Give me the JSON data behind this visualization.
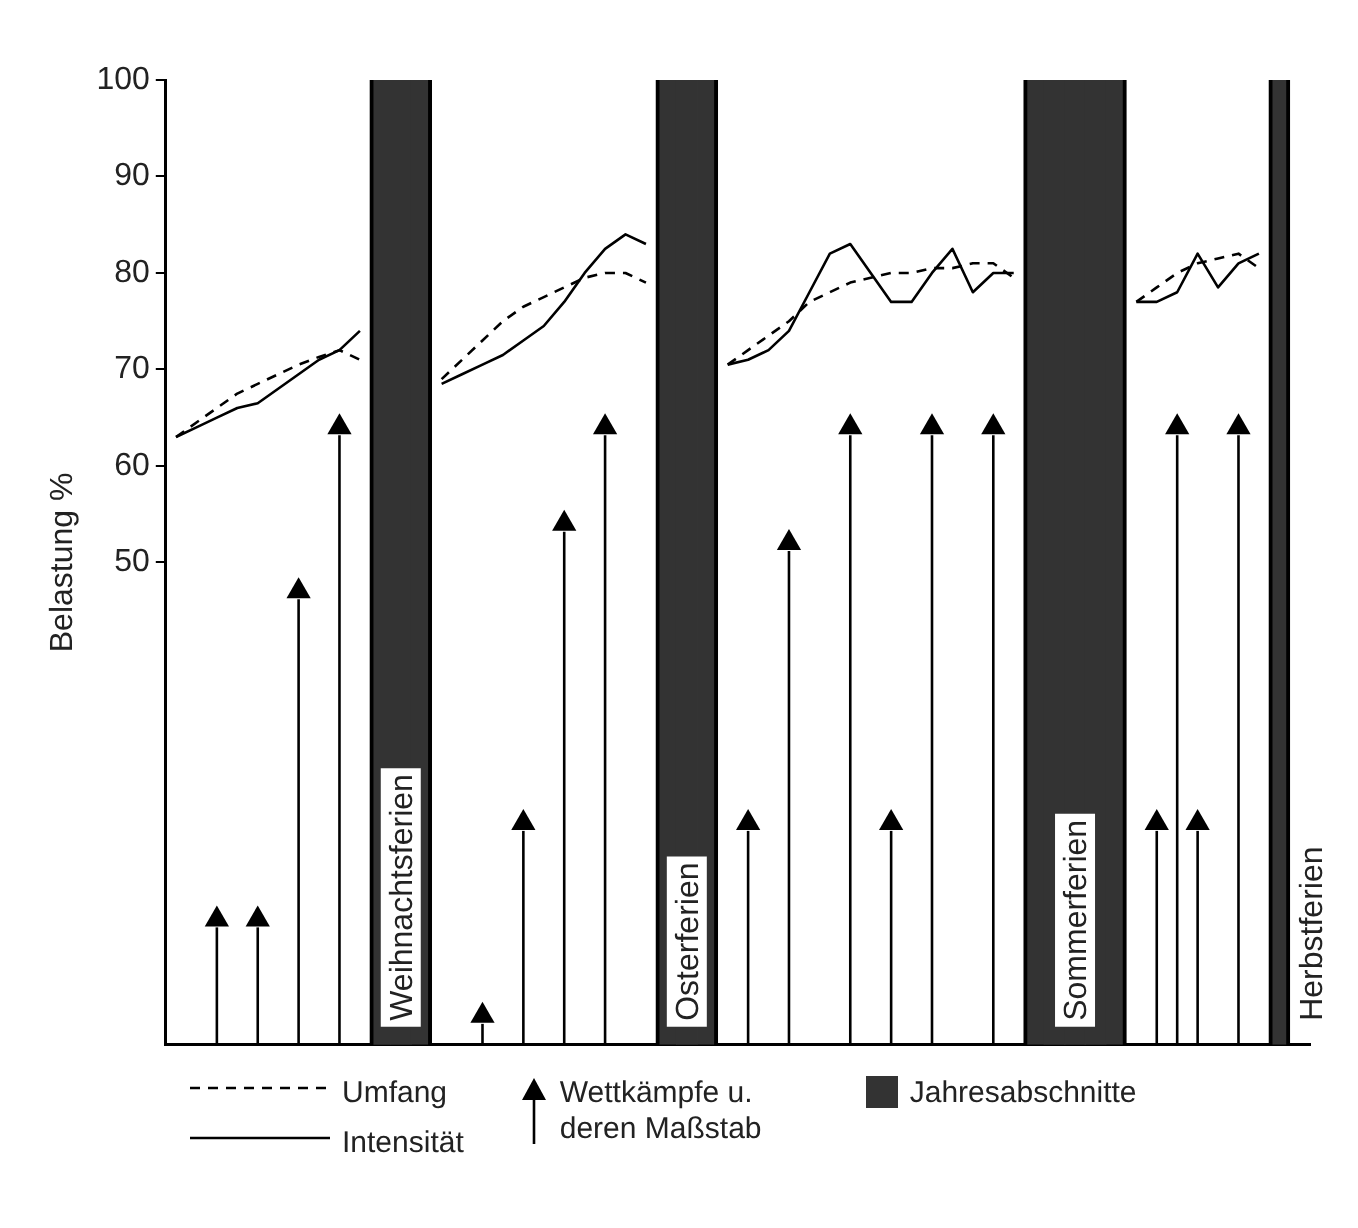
{
  "chart_data": {
    "type": "line",
    "ylabel": "Belastung %",
    "categories": [
      null,
      null,
      null,
      null,
      null,
      null,
      null,
      null,
      null,
      null,
      null,
      null,
      null,
      null,
      null,
      null,
      null,
      null,
      null,
      null,
      null,
      null,
      null,
      null,
      null,
      null,
      null,
      null,
      null,
      null,
      null,
      null,
      null,
      null,
      null,
      null,
      null,
      null,
      null,
      null,
      null,
      null,
      null,
      null,
      null,
      null,
      null,
      null,
      null,
      null,
      null,
      null,
      null,
      null,
      null,
      null
    ],
    "ylim": [
      0,
      100
    ],
    "yticks": [
      50,
      60,
      70,
      80,
      90,
      100
    ],
    "tick_labels": "y",
    "legend": "bottom",
    "annotations": [
      "Weihnachtsferien",
      "Osterferien",
      "Sommerferien",
      "Herbstferien"
    ],
    "series": [
      {
        "name": "Umfang",
        "color": "#000000",
        "line_style": "dashed",
        "marker": "none",
        "values": [
          63,
          64.5,
          66,
          67.5,
          68.5,
          69.5,
          70.5,
          71.3,
          72,
          71,
          null,
          null,
          null,
          69,
          71,
          73,
          75,
          76.5,
          77.5,
          78.5,
          79.5,
          80,
          80,
          79,
          null,
          null,
          null,
          70.5,
          72,
          73.5,
          75,
          77,
          78,
          79,
          79.5,
          80,
          80,
          80.5,
          80.5,
          81,
          81,
          79.5,
          null,
          null,
          null,
          null,
          null,
          77,
          78.5,
          80,
          81,
          81.5,
          82,
          80.5,
          null,
          null
        ]
      },
      {
        "name": "Intensität",
        "color": "#000000",
        "line_style": "solid",
        "marker": "none",
        "values": [
          63,
          64,
          65,
          66,
          66.5,
          68,
          69.5,
          71,
          72,
          74,
          null,
          null,
          null,
          68.5,
          69.5,
          70.5,
          71.5,
          73,
          74.5,
          77,
          80,
          82.5,
          84,
          83,
          null,
          null,
          null,
          70.5,
          71,
          72,
          74,
          78,
          82,
          83,
          80,
          77,
          77,
          80,
          82.5,
          78,
          80,
          80,
          null,
          null,
          null,
          null,
          null,
          77,
          77,
          78,
          82,
          78.5,
          81,
          82,
          null,
          null
        ]
      },
      {
        "name": "Wettkämpfe u. deren Maßstab",
        "type": "lollipop",
        "color": "#000000",
        "marker": "triangle",
        "values": [
          null,
          null,
          13,
          null,
          13,
          null,
          47,
          null,
          64,
          null,
          null,
          null,
          null,
          null,
          null,
          3,
          null,
          23,
          null,
          54,
          null,
          64,
          null,
          null,
          null,
          null,
          null,
          null,
          23,
          null,
          52,
          null,
          null,
          64,
          null,
          23,
          null,
          64,
          null,
          null,
          64,
          null,
          null,
          null,
          null,
          null,
          null,
          null,
          23,
          64,
          23,
          null,
          64,
          null,
          null,
          null
        ]
      },
      {
        "name": "Jahresabschnitte",
        "type": "bar",
        "color": "#333333",
        "values": [
          null,
          null,
          null,
          null,
          null,
          null,
          null,
          null,
          null,
          null,
          100,
          100,
          100,
          null,
          null,
          null,
          null,
          null,
          null,
          null,
          null,
          null,
          null,
          null,
          100,
          100,
          100,
          null,
          null,
          null,
          null,
          null,
          null,
          null,
          null,
          null,
          null,
          null,
          null,
          null,
          null,
          null,
          100,
          100,
          100,
          100,
          100,
          null,
          null,
          null,
          null,
          null,
          null,
          null,
          100,
          null
        ]
      }
    ]
  }
}
